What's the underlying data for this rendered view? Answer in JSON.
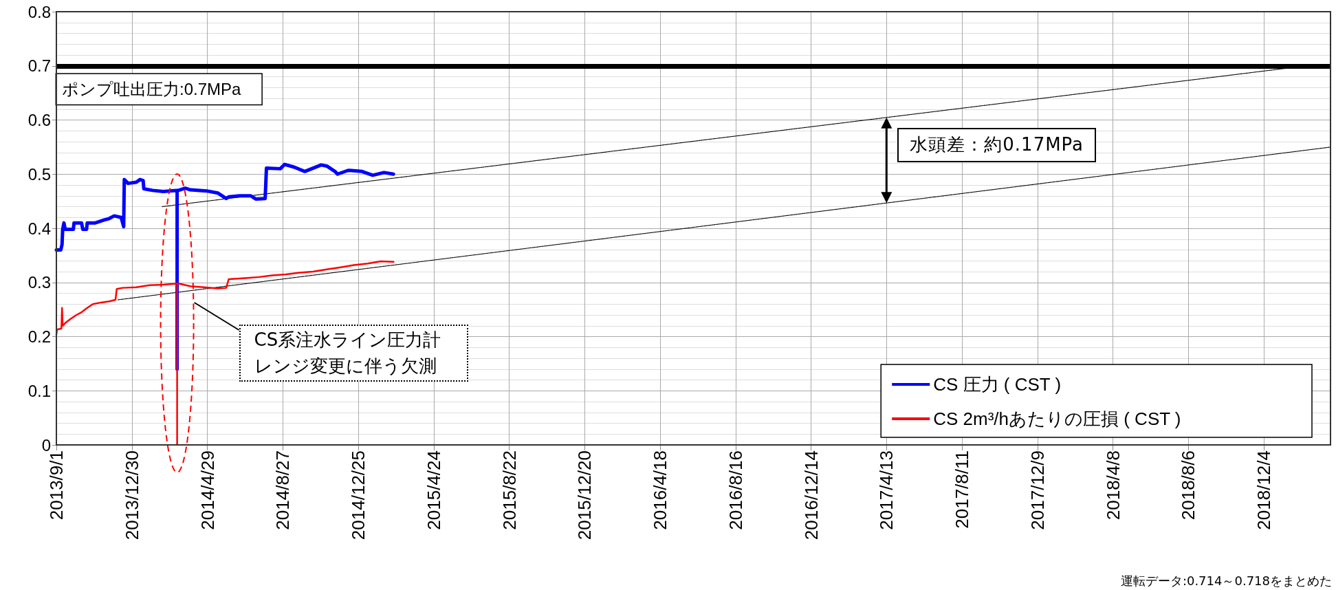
{
  "chart_data": {
    "type": "line",
    "marker": "none",
    "grid": true,
    "legend": "bottom right",
    "xlim": [
      "2013-09-01",
      "2019-03-20"
    ],
    "xticks": [
      {
        "value": "2013-09-01",
        "label": "2013/9/1"
      },
      {
        "value": "2013-12-30",
        "label": "2013/12/30"
      },
      {
        "value": "2014-04-29",
        "label": "2014/4/29"
      },
      {
        "value": "2014-08-27",
        "label": "2014/8/27"
      },
      {
        "value": "2014-12-25",
        "label": "2014/12/25"
      },
      {
        "value": "2015-04-24",
        "label": "2015/4/24"
      },
      {
        "value": "2015-08-22",
        "label": "2015/8/22"
      },
      {
        "value": "2015-12-20",
        "label": "2015/12/20"
      },
      {
        "value": "2016-04-18",
        "label": "2016/4/18"
      },
      {
        "value": "2016-08-16",
        "label": "2016/8/16"
      },
      {
        "value": "2016-12-14",
        "label": "2016/12/14"
      },
      {
        "value": "2017-04-13",
        "label": "2017/4/13"
      },
      {
        "value": "2017-08-11",
        "label": "2017/8/11"
      },
      {
        "value": "2017-12-09",
        "label": "2017/12/9"
      },
      {
        "value": "2018-04-08",
        "label": "2018/4/8"
      },
      {
        "value": "2018-08-06",
        "label": "2018/8/6"
      },
      {
        "value": "2018-12-04",
        "label": "2018/12/4"
      }
    ],
    "ylim": [
      0,
      0.8
    ],
    "yticks": [
      0,
      0.1,
      0.2,
      0.3,
      0.4,
      0.5,
      0.6,
      0.7,
      0.8
    ],
    "ref_lines": [
      {
        "axis": "y",
        "value": 0.7,
        "label": "ポンプ吐出圧力:0.7MPa",
        "color": "#000000"
      }
    ],
    "annotations": [
      "水頭差：約0.17MPa",
      "CS系注水ライン圧力計レンジ変更に伴う欠測",
      "運転データ:0.714～0.718をまとめた"
    ],
    "series": [
      {
        "name": "CS 圧力 ( CST )",
        "color": "#0000ff",
        "x": [
          "2013-09-01",
          "2013-09-08",
          "2013-09-10",
          "2013-09-11",
          "2013-09-13",
          "2013-09-15",
          "2013-09-28",
          "2013-09-29",
          "2013-10-11",
          "2013-10-13",
          "2013-10-19",
          "2013-10-20",
          "2013-11-02",
          "2013-11-15",
          "2013-11-24",
          "2013-12-02",
          "2013-12-13",
          "2013-12-17",
          "2013-12-18",
          "2013-12-24",
          "2014-01-06",
          "2014-01-12",
          "2014-01-17",
          "2014-01-18",
          "2014-02-01",
          "2014-02-18",
          "2014-03-12",
          "2014-03-12",
          "2014-03-12",
          "2014-03-14",
          "2014-03-25",
          "2014-04-02",
          "2014-04-28",
          "2014-05-16",
          "2014-05-29",
          "2014-06-02",
          "2014-06-19",
          "2014-07-07",
          "2014-07-15",
          "2014-07-30",
          "2014-08-01",
          "2014-08-23",
          "2014-08-30",
          "2014-09-14",
          "2014-10-01",
          "2014-10-27",
          "2014-11-05",
          "2014-11-18",
          "2014-11-22",
          "2014-12-09",
          "2014-12-31",
          "2015-01-17",
          "2015-02-04",
          "2015-02-19"
        ],
        "values": [
          0.36,
          0.36,
          0.37,
          0.398,
          0.41,
          0.398,
          0.398,
          0.41,
          0.41,
          0.398,
          0.398,
          0.41,
          0.41,
          0.415,
          0.418,
          0.423,
          0.42,
          0.403,
          0.49,
          0.483,
          0.485,
          0.49,
          0.488,
          0.473,
          0.47,
          0.468,
          0.47,
          0.14,
          0.47,
          0.47,
          0.474,
          0.471,
          0.469,
          0.465,
          0.455,
          0.458,
          0.46,
          0.46,
          0.454,
          0.455,
          0.511,
          0.51,
          0.518,
          0.513,
          0.505,
          0.517,
          0.515,
          0.505,
          0.5,
          0.507,
          0.505,
          0.498,
          0.503,
          0.5
        ]
      },
      {
        "name": "CS 2m³/hあたりの圧損 ( CST )",
        "color": "#ff0000",
        "x": [
          "2013-09-01",
          "2013-09-02",
          "2013-09-09",
          "2013-09-10",
          "2013-09-11",
          "2013-09-15",
          "2013-09-24",
          "2013-10-03",
          "2013-10-11",
          "2013-10-20",
          "2013-10-29",
          "2013-11-11",
          "2013-11-24",
          "2013-12-04",
          "2013-12-06",
          "2013-12-15",
          "2014-01-06",
          "2014-01-27",
          "2014-02-18",
          "2014-03-12",
          "2014-03-12",
          "2014-03-12",
          "2014-03-14",
          "2014-04-02",
          "2014-04-24",
          "2014-05-16",
          "2014-05-29",
          "2014-06-02",
          "2014-06-28",
          "2014-07-20",
          "2014-08-10",
          "2014-09-01",
          "2014-09-23",
          "2014-10-14",
          "2014-11-05",
          "2014-11-27",
          "2014-12-18",
          "2015-01-09",
          "2015-01-30",
          "2015-02-19"
        ],
        "values": [
          0.203,
          0.213,
          0.215,
          0.253,
          0.22,
          0.225,
          0.233,
          0.24,
          0.245,
          0.253,
          0.26,
          0.263,
          0.265,
          0.268,
          0.288,
          0.29,
          0.291,
          0.295,
          0.296,
          0.298,
          0,
          0.298,
          0.298,
          0.293,
          0.291,
          0.289,
          0.29,
          0.306,
          0.308,
          0.31,
          0.313,
          0.315,
          0.318,
          0.32,
          0.324,
          0.328,
          0.332,
          0.335,
          0.339,
          0.338
        ]
      },
      {
        "type": "line",
        "color": "#000000",
        "line_style": "dotted",
        "x": [
          "2014-02-16",
          "2019-02-09"
        ],
        "values": [
          0.44,
          0.7
        ]
      },
      {
        "type": "line",
        "color": "#000000",
        "line_style": "dotted",
        "x": [
          "2013-12-08",
          "2019-03-20"
        ],
        "values": [
          0.268,
          0.55
        ]
      }
    ]
  }
}
